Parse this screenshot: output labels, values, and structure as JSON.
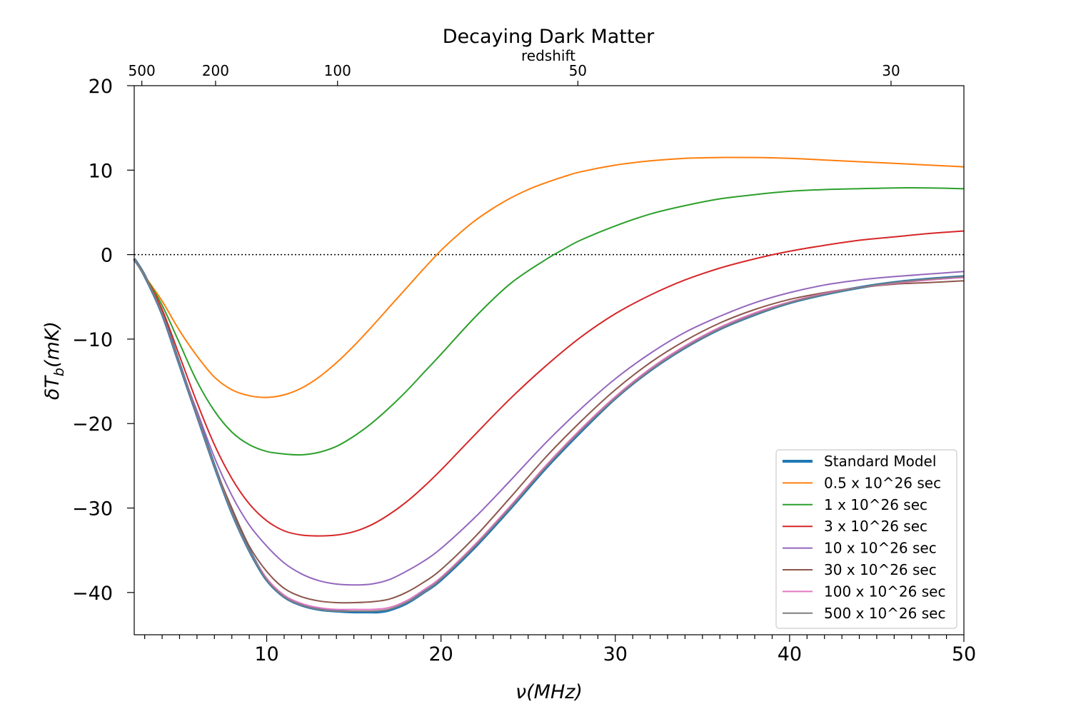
{
  "chart_data": {
    "type": "line",
    "title": "Decaying Dark Matter",
    "xlabel": "ν(MHz)",
    "ylabel": "δT_b(mK)",
    "secondary_xlabel": "redshift",
    "xlim": [
      2.4,
      50
    ],
    "ylim": [
      -45,
      20
    ],
    "xticks": [
      10,
      20,
      30,
      40,
      50
    ],
    "yticks": [
      20,
      10,
      0,
      -10,
      -20,
      -30,
      -40
    ],
    "redshift_ticks": [
      500,
      200,
      100,
      50,
      30
    ],
    "zero_line": {
      "y": 0,
      "style": "dotted"
    },
    "legend_position": "lower-right",
    "grid": false,
    "series": [
      {
        "name": "Standard Model",
        "color": "#1f77b4",
        "thick": true,
        "x": [
          2.4,
          3,
          4,
          5,
          6,
          7,
          8,
          9,
          10,
          11,
          12,
          13,
          14,
          15,
          16,
          16.4,
          17,
          18,
          19,
          20,
          22,
          24,
          26,
          28,
          30,
          32,
          34,
          36,
          38,
          40,
          42,
          44,
          46,
          48,
          50
        ],
        "y": [
          -0.5,
          -2.5,
          -7,
          -13,
          -19,
          -25,
          -30.5,
          -35,
          -38.5,
          -40.5,
          -41.5,
          -42,
          -42.2,
          -42.3,
          -42.3,
          -42.3,
          -42.1,
          -41.3,
          -40,
          -38.5,
          -34.5,
          -30,
          -25.3,
          -21,
          -17,
          -13.7,
          -11,
          -8.8,
          -7.1,
          -5.7,
          -4.7,
          -3.9,
          -3.3,
          -2.9,
          -2.6
        ]
      },
      {
        "name": "0.5 x 10^26 sec",
        "color": "#ff7f0e",
        "thick": false,
        "x": [
          2.4,
          3,
          4,
          5,
          6,
          7,
          8,
          9,
          10,
          11,
          12,
          13,
          14,
          15,
          16,
          17,
          18,
          19,
          20,
          21,
          22,
          23,
          24,
          25,
          26,
          27,
          28,
          30,
          32,
          34,
          36,
          38,
          40,
          42,
          44,
          46,
          48,
          50
        ],
        "y": [
          -0.5,
          -2.5,
          -5.5,
          -9,
          -12,
          -14.5,
          -16,
          -16.7,
          -16.9,
          -16.6,
          -15.8,
          -14.5,
          -12.8,
          -10.8,
          -8.6,
          -6.3,
          -4,
          -1.7,
          0.5,
          2.4,
          4.1,
          5.5,
          6.7,
          7.7,
          8.5,
          9.2,
          9.8,
          10.6,
          11.1,
          11.4,
          11.5,
          11.5,
          11.4,
          11.2,
          11,
          10.8,
          10.6,
          10.4
        ]
      },
      {
        "name": "1 x 10^26 sec",
        "color": "#2ca02c",
        "thick": false,
        "x": [
          2.4,
          3,
          4,
          5,
          6,
          7,
          8,
          9,
          10,
          11,
          12,
          13,
          14,
          15,
          16,
          17,
          18,
          19,
          20,
          22,
          24,
          26,
          27,
          28,
          30,
          32,
          34,
          36,
          38,
          40,
          42,
          44,
          46,
          48,
          50
        ],
        "y": [
          -0.5,
          -2.5,
          -6,
          -10.5,
          -15,
          -18.5,
          -21,
          -22.5,
          -23.3,
          -23.6,
          -23.7,
          -23.4,
          -22.7,
          -21.5,
          -20,
          -18.2,
          -16.2,
          -14,
          -11.8,
          -7.3,
          -3.4,
          -0.6,
          0.6,
          1.7,
          3.4,
          4.8,
          5.8,
          6.6,
          7.1,
          7.5,
          7.7,
          7.8,
          7.9,
          7.9,
          7.8
        ]
      },
      {
        "name": "3 x 10^26 sec",
        "color": "#d62728",
        "thick": false,
        "x": [
          2.4,
          3,
          4,
          5,
          6,
          7,
          8,
          9,
          10,
          11,
          12,
          13,
          14,
          15,
          16,
          17,
          18,
          19,
          20,
          22,
          24,
          26,
          28,
          30,
          32,
          34,
          36,
          38,
          40,
          42,
          44,
          46,
          48,
          50
        ],
        "y": [
          -0.5,
          -2.5,
          -6.5,
          -12,
          -17.5,
          -22.5,
          -26.5,
          -29.5,
          -31.5,
          -32.7,
          -33.2,
          -33.3,
          -33.2,
          -32.8,
          -32,
          -30.8,
          -29.3,
          -27.5,
          -25.5,
          -21.2,
          -17,
          -13.2,
          -9.8,
          -7,
          -4.8,
          -3,
          -1.6,
          -0.5,
          0.4,
          1.1,
          1.7,
          2.1,
          2.5,
          2.8
        ]
      },
      {
        "name": "10 x 10^26 sec",
        "color": "#9467bd",
        "thick": false,
        "x": [
          2.4,
          3,
          4,
          5,
          6,
          7,
          8,
          9,
          10,
          11,
          12,
          13,
          14,
          15,
          16,
          17,
          18,
          19,
          20,
          22,
          24,
          26,
          28,
          30,
          32,
          34,
          36,
          38,
          40,
          42,
          44,
          46,
          48,
          50
        ],
        "y": [
          -0.5,
          -2.5,
          -7,
          -13,
          -18.5,
          -24,
          -28.5,
          -32,
          -34.5,
          -36.5,
          -37.8,
          -38.6,
          -39,
          -39.1,
          -39,
          -38.5,
          -37.5,
          -36.3,
          -34.8,
          -31,
          -26.7,
          -22.3,
          -18.3,
          -14.7,
          -11.7,
          -9.2,
          -7.3,
          -5.7,
          -4.5,
          -3.6,
          -3,
          -2.6,
          -2.3,
          -2
        ]
      },
      {
        "name": "30 x 10^26 sec",
        "color": "#8c564b",
        "thick": false,
        "x": [
          2.4,
          3,
          4,
          5,
          6,
          7,
          8,
          9,
          10,
          11,
          12,
          13,
          14,
          15,
          16,
          17,
          18,
          19,
          20,
          22,
          24,
          26,
          28,
          30,
          32,
          34,
          36,
          38,
          40,
          42,
          44,
          46,
          48,
          50
        ],
        "y": [
          -0.5,
          -2.5,
          -7,
          -13,
          -19,
          -25,
          -30,
          -34.5,
          -37.5,
          -39.5,
          -40.5,
          -41,
          -41.2,
          -41.2,
          -41.1,
          -40.8,
          -40,
          -38.8,
          -37.3,
          -33.3,
          -28.7,
          -24,
          -19.8,
          -16,
          -12.8,
          -10.2,
          -8.1,
          -6.5,
          -5.3,
          -4.5,
          -3.9,
          -3.5,
          -3.3,
          -3.1
        ]
      },
      {
        "name": "100 x 10^26 sec",
        "color": "#e377c2",
        "thick": false,
        "x": [
          2.4,
          3,
          4,
          5,
          6,
          7,
          8,
          9,
          10,
          11,
          12,
          13,
          14,
          15,
          16,
          17,
          18,
          19,
          20,
          22,
          24,
          26,
          28,
          30,
          32,
          34,
          36,
          38,
          40,
          42,
          44,
          46,
          48,
          50
        ],
        "y": [
          -0.5,
          -2.5,
          -7,
          -13,
          -19,
          -25,
          -30.5,
          -35,
          -38.3,
          -40.3,
          -41.3,
          -41.8,
          -42,
          -42,
          -42,
          -41.8,
          -41,
          -39.7,
          -38.2,
          -34.2,
          -29.7,
          -25,
          -20.7,
          -16.8,
          -13.5,
          -10.8,
          -8.6,
          -6.9,
          -5.6,
          -4.6,
          -3.9,
          -3.4,
          -3,
          -2.7
        ]
      },
      {
        "name": "500 x 10^26 sec",
        "color": "#7f7f7f",
        "thick": false,
        "x": [
          2.4,
          3,
          4,
          5,
          6,
          7,
          8,
          9,
          10,
          11,
          12,
          13,
          14,
          15,
          16,
          17,
          18,
          19,
          20,
          22,
          24,
          26,
          28,
          30,
          32,
          34,
          36,
          38,
          40,
          42,
          44,
          46,
          48,
          50
        ],
        "y": [
          -0.5,
          -2.5,
          -7,
          -13,
          -19,
          -25,
          -30.5,
          -35,
          -38.5,
          -40.5,
          -41.5,
          -42,
          -42.2,
          -42.2,
          -42.2,
          -42,
          -41.2,
          -40,
          -38.4,
          -34.4,
          -29.9,
          -25.2,
          -20.9,
          -17,
          -13.7,
          -11,
          -8.8,
          -7.1,
          -5.7,
          -4.7,
          -3.9,
          -3.3,
          -2.9,
          -2.6
        ]
      }
    ]
  }
}
